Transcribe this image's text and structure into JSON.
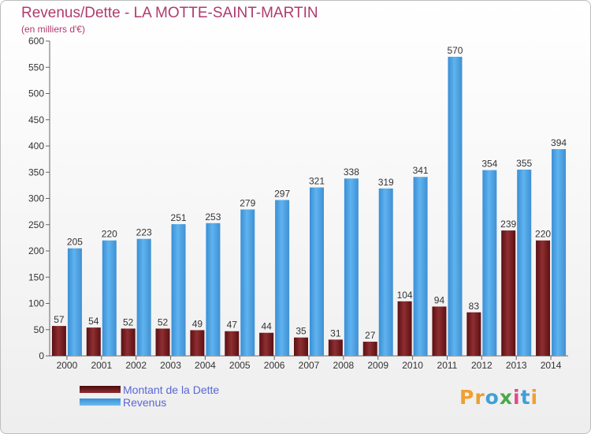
{
  "chart_data": {
    "type": "bar",
    "title": "Revenus/Dette - LA MOTTE-SAINT-MARTIN",
    "subtitle": "(en milliers d'€)",
    "categories": [
      "2000",
      "2001",
      "2002",
      "2003",
      "2004",
      "2005",
      "2006",
      "2007",
      "2008",
      "2009",
      "2010",
      "2011",
      "2012",
      "2013",
      "2014"
    ],
    "series": [
      {
        "name": "Montant de la Dette",
        "color": "#7a1f22",
        "values": [
          57,
          54,
          52,
          52,
          49,
          47,
          44,
          35,
          31,
          27,
          104,
          94,
          83,
          239,
          220
        ]
      },
      {
        "name": "Revenus",
        "color": "#4ba0e2",
        "values": [
          205,
          220,
          223,
          251,
          253,
          279,
          297,
          321,
          338,
          319,
          341,
          570,
          354,
          355,
          394
        ]
      }
    ],
    "ylim": [
      0,
      600
    ],
    "yticks": [
      0,
      50,
      100,
      150,
      200,
      250,
      300,
      350,
      400,
      450,
      500,
      550,
      600
    ],
    "grid": false,
    "legend_position": "bottom-left"
  },
  "logo": {
    "text": "Proxiti"
  }
}
